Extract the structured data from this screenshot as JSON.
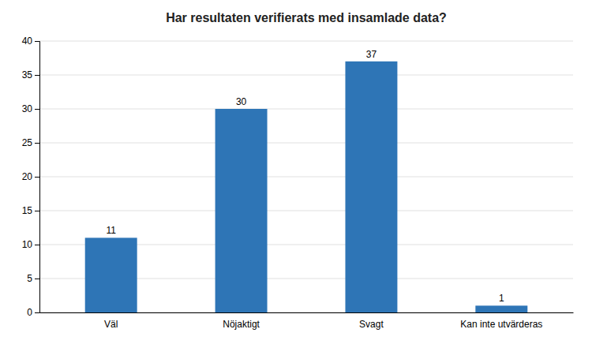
{
  "chart_data": {
    "type": "bar",
    "title": "Har resultaten verifierats med insamlade data?",
    "categories": [
      "Väl",
      "Nöjaktigt",
      "Svagt",
      "Kan inte utvärderas"
    ],
    "values": [
      11,
      30,
      37,
      1
    ],
    "color": "#2E75B6",
    "ylim": [
      0,
      40
    ],
    "yticks": [
      0,
      5,
      10,
      15,
      20,
      25,
      30,
      35,
      40
    ],
    "grid": true,
    "data_labels": true
  }
}
